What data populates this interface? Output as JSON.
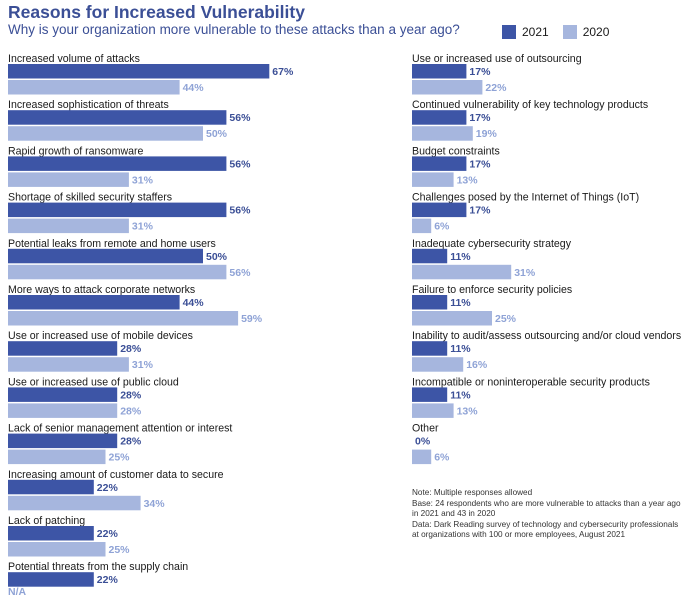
{
  "header": {
    "title": "Reasons for Increased Vulnerability",
    "subtitle": "Why is your organization more vulnerable to these attacks than a year ago?"
  },
  "legend": {
    "series_2021": "2021",
    "series_2020": "2020"
  },
  "colors": {
    "series_2021": "#3d55a6",
    "series_2020": "#a6b6de",
    "label_2021": "#3b4f96",
    "label_2020": "#8fa3d6",
    "title": "#3b4f96"
  },
  "notes": [
    "Note: Multiple responses allowed",
    "Base: 24 respondents who are more vulnerable to attacks than a year ago",
    "in 2021 and 43 in 2020",
    "Data: Dark Reading survey of technology and cybersecurity professionals",
    "at organizations with 100 or more employees, August 2021"
  ],
  "na_label": "N/A",
  "chart_data": {
    "type": "bar",
    "orientation": "horizontal",
    "title": "Reasons for Increased Vulnerability",
    "subtitle": "Why is your organization more vulnerable to these attacks than a year ago?",
    "unit": "%",
    "series_names": [
      "2021",
      "2020"
    ],
    "legend_position": "top-right",
    "grid": false,
    "panels": [
      {
        "column": "left",
        "items": [
          {
            "label": "Increased volume of attacks",
            "v2021": 67,
            "v2020": 44
          },
          {
            "label": "Increased sophistication of threats",
            "v2021": 56,
            "v2020": 50
          },
          {
            "label": "Rapid growth of ransomware",
            "v2021": 56,
            "v2020": 31
          },
          {
            "label": "Shortage of skilled security staffers",
            "v2021": 56,
            "v2020": 31
          },
          {
            "label": "Potential leaks from remote and home users",
            "v2021": 50,
            "v2020": 56
          },
          {
            "label": "More ways to attack corporate networks",
            "v2021": 44,
            "v2020": 59
          },
          {
            "label": "Use or increased use of mobile devices",
            "v2021": 28,
            "v2020": 31
          },
          {
            "label": "Use or increased use of public cloud",
            "v2021": 28,
            "v2020": 28
          },
          {
            "label": "Lack of senior management attention or interest",
            "v2021": 28,
            "v2020": 25
          },
          {
            "label": "Increasing amount of customer data to secure",
            "v2021": 22,
            "v2020": 34
          },
          {
            "label": "Lack of patching",
            "v2021": 22,
            "v2020": 25
          },
          {
            "label": "Potential threats from the supply chain",
            "v2021": 22,
            "v2020": null
          }
        ]
      },
      {
        "column": "right",
        "items": [
          {
            "label": "Use or increased use of outsourcing",
            "v2021": 17,
            "v2020": 22
          },
          {
            "label": "Continued vulnerability of key technology products",
            "v2021": 17,
            "v2020": 19
          },
          {
            "label": "Budget constraints",
            "v2021": 17,
            "v2020": 13
          },
          {
            "label": "Challenges posed by the Internet of Things (IoT)",
            "v2021": 17,
            "v2020": 6
          },
          {
            "label": "Inadequate cybersecurity strategy",
            "v2021": 11,
            "v2020": 31
          },
          {
            "label": "Failure to enforce security policies",
            "v2021": 11,
            "v2020": 25
          },
          {
            "label": "Inability to audit/assess outsourcing and/or cloud vendors",
            "v2021": 11,
            "v2020": 16
          },
          {
            "label": "Incompatible or noninteroperable security products",
            "v2021": 11,
            "v2020": 13
          },
          {
            "label": "Other",
            "v2021": 0,
            "v2020": 6
          }
        ]
      }
    ]
  }
}
